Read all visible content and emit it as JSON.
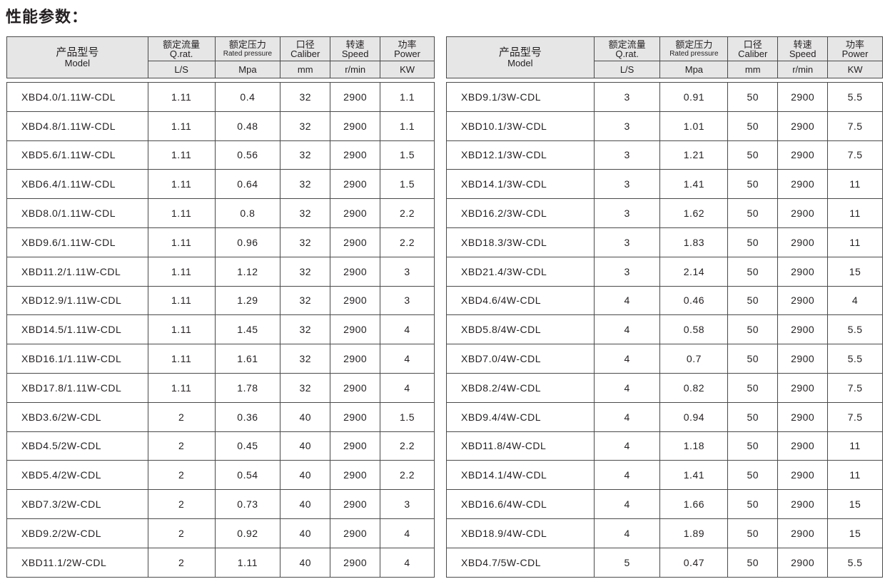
{
  "title": "性能参数：",
  "header": {
    "model_zh": "产品型号",
    "model_en": "Model",
    "cols": [
      {
        "zh": "额定流量",
        "en": "Q.rat.",
        "unit": "L/S"
      },
      {
        "zh": "额定压力",
        "en": "Rated pressure",
        "unit": "Mpa"
      },
      {
        "zh": "口径",
        "en": "Caliber",
        "unit": "mm"
      },
      {
        "zh": "转速",
        "en": "Speed",
        "unit": "r/min"
      },
      {
        "zh": "功率",
        "en": "Power",
        "unit": "KW"
      }
    ]
  },
  "left_rows": [
    [
      "XBD4.0/1.11W-CDL",
      "1.11",
      "0.4",
      "32",
      "2900",
      "1.1"
    ],
    [
      "XBD4.8/1.11W-CDL",
      "1.11",
      "0.48",
      "32",
      "2900",
      "1.1"
    ],
    [
      "XBD5.6/1.11W-CDL",
      "1.11",
      "0.56",
      "32",
      "2900",
      "1.5"
    ],
    [
      "XBD6.4/1.11W-CDL",
      "1.11",
      "0.64",
      "32",
      "2900",
      "1.5"
    ],
    [
      "XBD8.0/1.11W-CDL",
      "1.11",
      "0.8",
      "32",
      "2900",
      "2.2"
    ],
    [
      "XBD9.6/1.11W-CDL",
      "1.11",
      "0.96",
      "32",
      "2900",
      "2.2"
    ],
    [
      "XBD11.2/1.11W-CDL",
      "1.11",
      "1.12",
      "32",
      "2900",
      "3"
    ],
    [
      "XBD12.9/1.11W-CDL",
      "1.11",
      "1.29",
      "32",
      "2900",
      "3"
    ],
    [
      "XBD14.5/1.11W-CDL",
      "1.11",
      "1.45",
      "32",
      "2900",
      "4"
    ],
    [
      "XBD16.1/1.11W-CDL",
      "1.11",
      "1.61",
      "32",
      "2900",
      "4"
    ],
    [
      "XBD17.8/1.11W-CDL",
      "1.11",
      "1.78",
      "32",
      "2900",
      "4"
    ],
    [
      "XBD3.6/2W-CDL",
      "2",
      "0.36",
      "40",
      "2900",
      "1.5"
    ],
    [
      "XBD4.5/2W-CDL",
      "2",
      "0.45",
      "40",
      "2900",
      "2.2"
    ],
    [
      "XBD5.4/2W-CDL",
      "2",
      "0.54",
      "40",
      "2900",
      "2.2"
    ],
    [
      "XBD7.3/2W-CDL",
      "2",
      "0.73",
      "40",
      "2900",
      "3"
    ],
    [
      "XBD9.2/2W-CDL",
      "2",
      "0.92",
      "40",
      "2900",
      "4"
    ],
    [
      "XBD11.1/2W-CDL",
      "2",
      "1.11",
      "40",
      "2900",
      "4"
    ]
  ],
  "right_rows": [
    [
      "XBD9.1/3W-CDL",
      "3",
      "0.91",
      "50",
      "2900",
      "5.5"
    ],
    [
      "XBD10.1/3W-CDL",
      "3",
      "1.01",
      "50",
      "2900",
      "7.5"
    ],
    [
      "XBD12.1/3W-CDL",
      "3",
      "1.21",
      "50",
      "2900",
      "7.5"
    ],
    [
      "XBD14.1/3W-CDL",
      "3",
      "1.41",
      "50",
      "2900",
      "11"
    ],
    [
      "XBD16.2/3W-CDL",
      "3",
      "1.62",
      "50",
      "2900",
      "11"
    ],
    [
      "XBD18.3/3W-CDL",
      "3",
      "1.83",
      "50",
      "2900",
      "11"
    ],
    [
      "XBD21.4/3W-CDL",
      "3",
      "2.14",
      "50",
      "2900",
      "15"
    ],
    [
      "XBD4.6/4W-CDL",
      "4",
      "0.46",
      "50",
      "2900",
      "4"
    ],
    [
      "XBD5.8/4W-CDL",
      "4",
      "0.58",
      "50",
      "2900",
      "5.5"
    ],
    [
      "XBD7.0/4W-CDL",
      "4",
      "0.7",
      "50",
      "2900",
      "5.5"
    ],
    [
      "XBD8.2/4W-CDL",
      "4",
      "0.82",
      "50",
      "2900",
      "7.5"
    ],
    [
      "XBD9.4/4W-CDL",
      "4",
      "0.94",
      "50",
      "2900",
      "7.5"
    ],
    [
      "XBD11.8/4W-CDL",
      "4",
      "1.18",
      "50",
      "2900",
      "11"
    ],
    [
      "XBD14.1/4W-CDL",
      "4",
      "1.41",
      "50",
      "2900",
      "11"
    ],
    [
      "XBD16.6/4W-CDL",
      "4",
      "1.66",
      "50",
      "2900",
      "15"
    ],
    [
      "XBD18.9/4W-CDL",
      "4",
      "1.89",
      "50",
      "2900",
      "15"
    ],
    [
      "XBD4.7/5W-CDL",
      "5",
      "0.47",
      "50",
      "2900",
      "5.5"
    ]
  ]
}
